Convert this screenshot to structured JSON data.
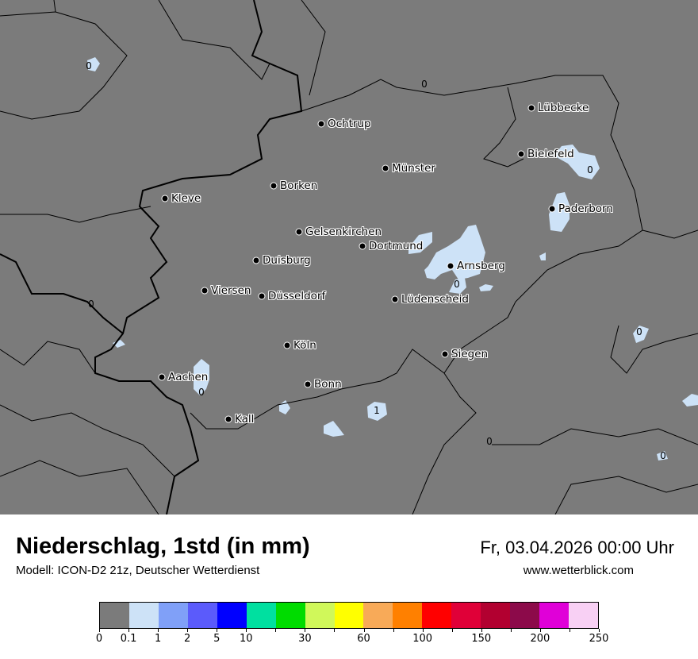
{
  "map": {
    "background_color": "#7b7b7b",
    "precip_color": "#cde2f7",
    "cities": [
      {
        "name": "Ochtrup"
      },
      {
        "name": "Lübbecke"
      },
      {
        "name": "Bielefeld"
      },
      {
        "name": "Münster"
      },
      {
        "name": "Borken"
      },
      {
        "name": "Kleve"
      },
      {
        "name": "Paderborn"
      },
      {
        "name": "Gelsenkirchen"
      },
      {
        "name": "Dortmund"
      },
      {
        "name": "Duisburg"
      },
      {
        "name": "Arnsberg"
      },
      {
        "name": "Viersen"
      },
      {
        "name": "Düsseldorf"
      },
      {
        "name": "Lüdenscheid"
      },
      {
        "name": "Köln"
      },
      {
        "name": "Siegen"
      },
      {
        "name": "Aachen"
      },
      {
        "name": "Bonn"
      },
      {
        "name": "Kall"
      }
    ],
    "contour_labels": [
      "0",
      "0",
      "0",
      "0",
      "0",
      "0",
      "0",
      "0",
      "0",
      "1"
    ]
  },
  "header": {
    "title": "Niederschlag, 1std (in mm)",
    "model": "Modell: ICON-D2 21z, Deutscher Wetterdienst",
    "datetime": "Fr, 03.04.2026 00:00 Uhr",
    "website": "www.wetterblick.com"
  },
  "legend": {
    "colors": [
      "#7b7b7b",
      "#cde2f7",
      "#80a0f8",
      "#5b5bfb",
      "#0000ff",
      "#00e0a0",
      "#00dc00",
      "#d0f85a",
      "#ffff00",
      "#f8aa58",
      "#ff8000",
      "#ff0000",
      "#e00038",
      "#b20030",
      "#8c0a4a",
      "#e000d8",
      "#f8d0f4"
    ],
    "tick_labels": [
      "0",
      "0.1",
      "1",
      "2",
      "5",
      "10",
      "",
      "30",
      "",
      "60",
      "",
      "100",
      "",
      "150",
      "",
      "200",
      "",
      "250"
    ]
  }
}
